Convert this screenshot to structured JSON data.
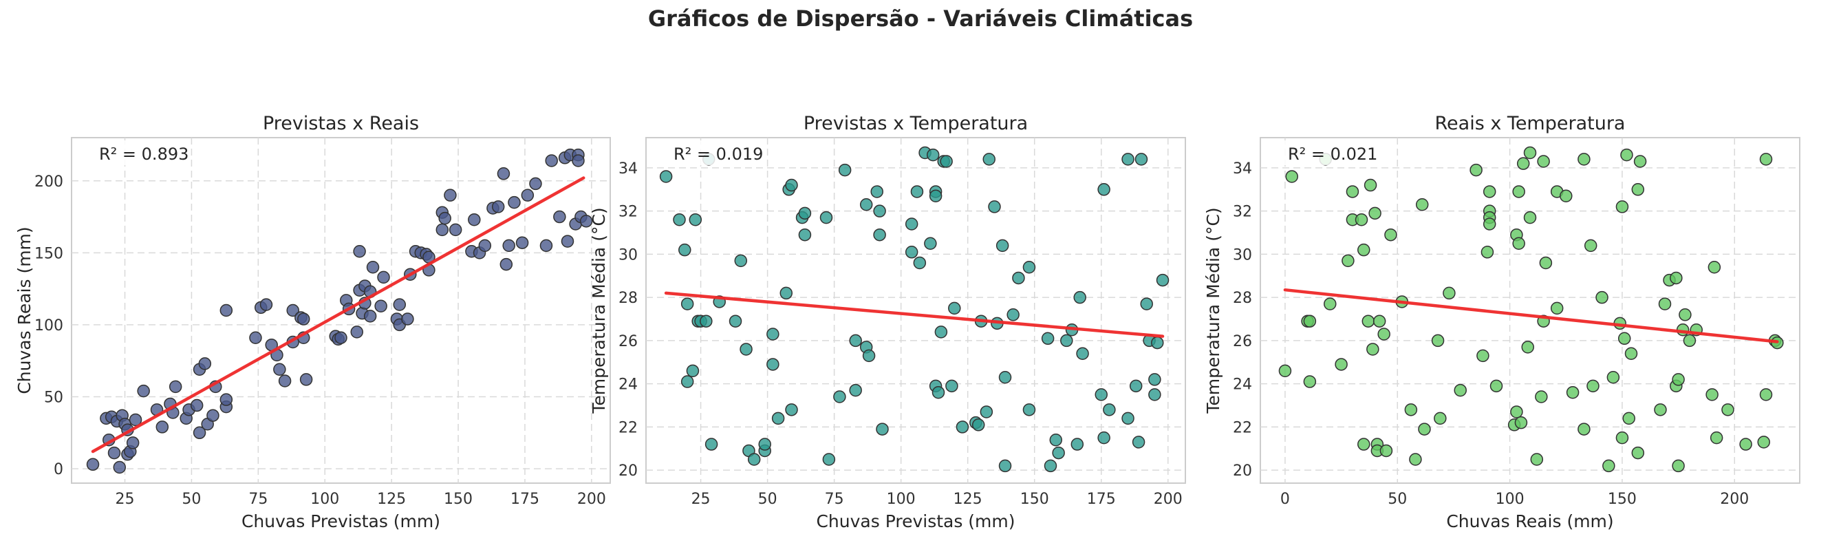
{
  "figure": {
    "title": "Gráficos de Dispersão - Variáveis Climáticas"
  },
  "colors": {
    "regression": "#ef2929",
    "series": [
      "#4b5a8c",
      "#2d9a8e",
      "#62c862"
    ]
  },
  "chart_data": [
    {
      "type": "scatter",
      "title": "Previstas x Reais",
      "xlabel": "Chuvas Previstas (mm)",
      "ylabel": "Chuvas Reais (mm)",
      "r2_label": "R² = 0.893",
      "xlim": [
        5,
        207
      ],
      "ylim": [
        -10,
        230
      ],
      "xticks": [
        25,
        50,
        75,
        100,
        125,
        150,
        175,
        200
      ],
      "yticks": [
        0,
        50,
        100,
        150,
        200
      ],
      "grid": true,
      "regression": {
        "x": [
          13,
          197
        ],
        "y": [
          12,
          202
        ]
      },
      "points": [
        [
          13,
          3
        ],
        [
          18,
          35
        ],
        [
          19,
          20
        ],
        [
          20,
          36
        ],
        [
          21,
          11
        ],
        [
          22,
          33
        ],
        [
          23,
          1
        ],
        [
          24,
          37
        ],
        [
          25,
          31
        ],
        [
          26,
          10
        ],
        [
          26,
          27
        ],
        [
          27,
          12
        ],
        [
          28,
          18
        ],
        [
          29,
          34
        ],
        [
          32,
          54
        ],
        [
          37,
          41
        ],
        [
          39,
          29
        ],
        [
          42,
          45
        ],
        [
          43,
          39
        ],
        [
          44,
          57
        ],
        [
          48,
          35
        ],
        [
          49,
          41
        ],
        [
          52,
          44
        ],
        [
          53,
          25
        ],
        [
          53,
          69
        ],
        [
          55,
          73
        ],
        [
          56,
          31
        ],
        [
          58,
          37
        ],
        [
          59,
          57
        ],
        [
          63,
          43
        ],
        [
          63,
          48
        ],
        [
          63,
          110
        ],
        [
          74,
          91
        ],
        [
          76,
          112
        ],
        [
          78,
          114
        ],
        [
          80,
          86
        ],
        [
          82,
          79
        ],
        [
          83,
          69
        ],
        [
          85,
          61
        ],
        [
          88,
          88
        ],
        [
          88,
          110
        ],
        [
          91,
          105
        ],
        [
          92,
          104
        ],
        [
          92,
          91
        ],
        [
          93,
          62
        ],
        [
          104,
          92
        ],
        [
          105,
          90
        ],
        [
          106,
          91
        ],
        [
          108,
          117
        ],
        [
          109,
          111
        ],
        [
          112,
          95
        ],
        [
          113,
          151
        ],
        [
          113,
          124
        ],
        [
          114,
          108
        ],
        [
          115,
          127
        ],
        [
          115,
          115
        ],
        [
          117,
          106
        ],
        [
          117,
          123
        ],
        [
          118,
          140
        ],
        [
          121,
          113
        ],
        [
          122,
          133
        ],
        [
          127,
          104
        ],
        [
          128,
          100
        ],
        [
          128,
          114
        ],
        [
          131,
          104
        ],
        [
          132,
          135
        ],
        [
          134,
          151
        ],
        [
          136,
          150
        ],
        [
          138,
          149
        ],
        [
          139,
          147
        ],
        [
          139,
          138
        ],
        [
          144,
          166
        ],
        [
          144,
          178
        ],
        [
          145,
          174
        ],
        [
          147,
          190
        ],
        [
          149,
          166
        ],
        [
          155,
          151
        ],
        [
          156,
          173
        ],
        [
          158,
          150
        ],
        [
          160,
          155
        ],
        [
          163,
          181
        ],
        [
          165,
          182
        ],
        [
          167,
          205
        ],
        [
          168,
          142
        ],
        [
          169,
          155
        ],
        [
          171,
          185
        ],
        [
          174,
          157
        ],
        [
          176,
          190
        ],
        [
          179,
          198
        ],
        [
          183,
          155
        ],
        [
          185,
          214
        ],
        [
          188,
          175
        ],
        [
          190,
          216
        ],
        [
          191,
          158
        ],
        [
          192,
          218
        ],
        [
          194,
          170
        ],
        [
          195,
          218
        ],
        [
          195,
          214
        ],
        [
          196,
          175
        ],
        [
          198,
          172
        ]
      ]
    },
    {
      "type": "scatter",
      "title": "Previstas x Temperatura",
      "xlabel": "Chuvas Previstas (mm)",
      "ylabel": "Temperatura Média (°C)",
      "r2_label": "R² = 0.019",
      "xlim": [
        4.5,
        206.5
      ],
      "ylim": [
        19.4,
        35.4
      ],
      "xticks": [
        25,
        50,
        75,
        100,
        125,
        150,
        175,
        200
      ],
      "yticks": [
        20,
        22,
        24,
        26,
        28,
        30,
        32,
        34
      ],
      "grid": true,
      "regression": {
        "x": [
          12,
          198
        ],
        "y": [
          28.2,
          26.2
        ]
      },
      "points": [
        [
          12,
          33.6
        ],
        [
          17,
          31.6
        ],
        [
          19,
          30.2
        ],
        [
          20,
          24.1
        ],
        [
          20,
          27.7
        ],
        [
          22,
          24.6
        ],
        [
          23,
          31.6
        ],
        [
          24,
          26.9
        ],
        [
          25,
          26.9
        ],
        [
          27,
          26.9
        ],
        [
          28,
          34.4
        ],
        [
          29,
          21.2
        ],
        [
          32,
          27.8
        ],
        [
          38,
          26.9
        ],
        [
          40,
          29.7
        ],
        [
          42,
          25.6
        ],
        [
          43,
          20.9
        ],
        [
          45,
          20.5
        ],
        [
          49,
          20.9
        ],
        [
          49,
          21.2
        ],
        [
          52,
          26.3
        ],
        [
          52,
          24.9
        ],
        [
          54,
          22.4
        ],
        [
          57,
          28.2
        ],
        [
          58,
          33.0
        ],
        [
          59,
          33.2
        ],
        [
          59,
          22.8
        ],
        [
          63,
          31.7
        ],
        [
          64,
          30.9
        ],
        [
          64,
          31.9
        ],
        [
          72,
          31.7
        ],
        [
          73,
          20.5
        ],
        [
          77,
          23.4
        ],
        [
          79,
          33.9
        ],
        [
          83,
          23.7
        ],
        [
          83,
          26.0
        ],
        [
          87,
          25.7
        ],
        [
          87,
          32.3
        ],
        [
          88,
          25.3
        ],
        [
          91,
          32.9
        ],
        [
          92,
          30.9
        ],
        [
          92,
          32.0
        ],
        [
          93,
          21.9
        ],
        [
          104,
          30.1
        ],
        [
          104,
          31.4
        ],
        [
          106,
          32.9
        ],
        [
          107,
          29.6
        ],
        [
          109,
          34.7
        ],
        [
          111,
          30.5
        ],
        [
          112,
          34.6
        ],
        [
          113,
          32.9
        ],
        [
          113,
          32.7
        ],
        [
          113,
          23.9
        ],
        [
          114,
          23.6
        ],
        [
          115,
          26.4
        ],
        [
          116,
          34.3
        ],
        [
          117,
          34.3
        ],
        [
          119,
          23.9
        ],
        [
          120,
          27.5
        ],
        [
          123,
          22.0
        ],
        [
          128,
          22.2
        ],
        [
          129,
          22.1
        ],
        [
          130,
          26.9
        ],
        [
          132,
          22.7
        ],
        [
          133,
          34.4
        ],
        [
          135,
          32.2
        ],
        [
          136,
          26.8
        ],
        [
          138,
          30.4
        ],
        [
          139,
          24.3
        ],
        [
          139,
          20.2
        ],
        [
          142,
          27.2
        ],
        [
          144,
          28.9
        ],
        [
          148,
          22.8
        ],
        [
          148,
          29.4
        ],
        [
          155,
          26.1
        ],
        [
          156,
          20.2
        ],
        [
          158,
          21.4
        ],
        [
          159,
          20.8
        ],
        [
          162,
          26.0
        ],
        [
          164,
          26.5
        ],
        [
          166,
          21.2
        ],
        [
          167,
          28.0
        ],
        [
          168,
          25.4
        ],
        [
          175,
          23.5
        ],
        [
          176,
          21.5
        ],
        [
          176,
          33.0
        ],
        [
          178,
          22.8
        ],
        [
          185,
          22.4
        ],
        [
          185,
          34.4
        ],
        [
          188,
          23.9
        ],
        [
          189,
          21.3
        ],
        [
          190,
          34.4
        ],
        [
          192,
          27.7
        ],
        [
          193,
          26.0
        ],
        [
          195,
          24.2
        ],
        [
          195,
          23.5
        ],
        [
          196,
          25.9
        ],
        [
          198,
          28.8
        ]
      ]
    },
    {
      "type": "scatter",
      "title": "Reais x Temperatura",
      "xlabel": "Chuvas Reais (mm)",
      "ylabel": "Temperatura Média (°C)",
      "r2_label": "R² = 0.021",
      "xlim": [
        -11,
        229
      ],
      "ylim": [
        19.4,
        35.4
      ],
      "xticks": [
        0,
        50,
        100,
        150,
        200
      ],
      "yticks": [
        20,
        22,
        24,
        26,
        28,
        30,
        32,
        34
      ],
      "grid": true,
      "regression": {
        "x": [
          0,
          219
        ],
        "y": [
          28.35,
          25.95
        ]
      },
      "points": [
        [
          0,
          24.6
        ],
        [
          3,
          33.6
        ],
        [
          10,
          26.9
        ],
        [
          11,
          24.1
        ],
        [
          11,
          26.9
        ],
        [
          18,
          34.4
        ],
        [
          20,
          27.7
        ],
        [
          25,
          24.9
        ],
        [
          28,
          29.7
        ],
        [
          30,
          31.6
        ],
        [
          30,
          32.9
        ],
        [
          34,
          31.6
        ],
        [
          35,
          21.2
        ],
        [
          35,
          30.2
        ],
        [
          37,
          26.9
        ],
        [
          38,
          33.2
        ],
        [
          39,
          25.6
        ],
        [
          40,
          31.9
        ],
        [
          41,
          21.2
        ],
        [
          41,
          20.9
        ],
        [
          42,
          26.9
        ],
        [
          44,
          26.3
        ],
        [
          45,
          20.9
        ],
        [
          47,
          30.9
        ],
        [
          52,
          27.8
        ],
        [
          56,
          22.8
        ],
        [
          58,
          20.5
        ],
        [
          61,
          32.3
        ],
        [
          62,
          21.9
        ],
        [
          68,
          26.0
        ],
        [
          69,
          22.4
        ],
        [
          73,
          28.2
        ],
        [
          78,
          23.7
        ],
        [
          85,
          33.9
        ],
        [
          88,
          25.3
        ],
        [
          90,
          30.1
        ],
        [
          91,
          32.0
        ],
        [
          91,
          31.7
        ],
        [
          91,
          31.4
        ],
        [
          91,
          32.9
        ],
        [
          94,
          23.9
        ],
        [
          102,
          22.1
        ],
        [
          103,
          22.7
        ],
        [
          103,
          30.9
        ],
        [
          104,
          32.9
        ],
        [
          104,
          30.5
        ],
        [
          105,
          22.2
        ],
        [
          106,
          34.2
        ],
        [
          108,
          25.7
        ],
        [
          109,
          31.7
        ],
        [
          109,
          34.7
        ],
        [
          112,
          20.5
        ],
        [
          114,
          23.4
        ],
        [
          115,
          26.9
        ],
        [
          115,
          34.3
        ],
        [
          116,
          29.6
        ],
        [
          121,
          27.5
        ],
        [
          121,
          32.9
        ],
        [
          125,
          32.7
        ],
        [
          128,
          23.6
        ],
        [
          133,
          21.9
        ],
        [
          133,
          34.4
        ],
        [
          136,
          30.4
        ],
        [
          137,
          23.9
        ],
        [
          141,
          28.0
        ],
        [
          144,
          20.2
        ],
        [
          146,
          24.3
        ],
        [
          149,
          26.8
        ],
        [
          150,
          32.2
        ],
        [
          150,
          21.5
        ],
        [
          151,
          26.1
        ],
        [
          152,
          34.6
        ],
        [
          153,
          22.4
        ],
        [
          154,
          25.4
        ],
        [
          157,
          20.8
        ],
        [
          157,
          33.0
        ],
        [
          158,
          34.3
        ],
        [
          167,
          22.8
        ],
        [
          169,
          27.7
        ],
        [
          171,
          28.8
        ],
        [
          174,
          28.9
        ],
        [
          174,
          23.9
        ],
        [
          175,
          24.2
        ],
        [
          175,
          20.2
        ],
        [
          177,
          26.5
        ],
        [
          178,
          27.2
        ],
        [
          180,
          26.0
        ],
        [
          183,
          26.5
        ],
        [
          190,
          23.5
        ],
        [
          191,
          29.4
        ],
        [
          192,
          21.5
        ],
        [
          197,
          22.8
        ],
        [
          205,
          21.2
        ],
        [
          213,
          21.3
        ],
        [
          214,
          23.5
        ],
        [
          214,
          34.4
        ],
        [
          218,
          26.0
        ],
        [
          219,
          25.9
        ]
      ]
    }
  ]
}
